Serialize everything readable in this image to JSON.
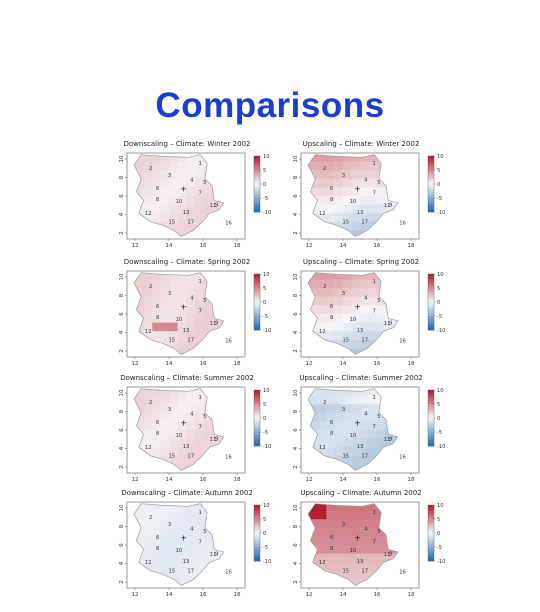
{
  "slide": {
    "title": "Comparisons"
  },
  "colors": {
    "title": "#1a3fcf",
    "positive": "#c0262e",
    "negative": "#2166ac",
    "neutral": "#f7f7f7",
    "border": "#b8b8b8"
  },
  "chart_data": {
    "type": "heatmap",
    "grid": {
      "rows": 4,
      "columns": 2
    },
    "x_ticks": [
      "12",
      "14",
      "16",
      "18"
    ],
    "y_ticks": [
      "2",
      "4",
      "6",
      "8",
      "10"
    ],
    "colorbar": {
      "min": -10,
      "max": 10,
      "ticks": [
        "10",
        "5",
        "0",
        "-5",
        "-10"
      ]
    },
    "station_labels": [
      "1",
      "2",
      "3",
      "4",
      "5",
      "6",
      "7",
      "8",
      "9",
      "10",
      "11",
      "12",
      "13",
      "15",
      "16",
      "17"
    ],
    "panels": [
      {
        "title": "Downscaling – Climate: Winter 2002",
        "method": "Downscaling",
        "season": "Winter",
        "year": 2002,
        "mean_anomaly": 1.0,
        "pattern": "weak-positive"
      },
      {
        "title": "Upscaling – Climate: Winter 2002",
        "method": "Upscaling",
        "season": "Winter",
        "year": 2002,
        "mean_anomaly": 1.5,
        "pattern": "positive-north-negative-south"
      },
      {
        "title": "Downscaling – Climate: Spring 2002",
        "method": "Downscaling",
        "season": "Spring",
        "year": 2002,
        "mean_anomaly": 1.5,
        "pattern": "positive-with-hotspot"
      },
      {
        "title": "Upscaling – Climate: Spring 2002",
        "method": "Upscaling",
        "season": "Spring",
        "year": 2002,
        "mean_anomaly": 2.0,
        "pattern": "positive-north-negative-south"
      },
      {
        "title": "Downscaling – Climate: Summer 2002",
        "method": "Downscaling",
        "season": "Summer",
        "year": 2002,
        "mean_anomaly": 0.8,
        "pattern": "weak-positive"
      },
      {
        "title": "Upscaling – Climate: Summer 2002",
        "method": "Upscaling",
        "season": "Summer",
        "year": 2002,
        "mean_anomaly": -2.0,
        "pattern": "negative"
      },
      {
        "title": "Downscaling – Climate: Autumn 2002",
        "method": "Downscaling",
        "season": "Autumn",
        "year": 2002,
        "mean_anomaly": -0.5,
        "pattern": "weak-negative"
      },
      {
        "title": "Upscaling – Climate: Autumn 2002",
        "method": "Upscaling",
        "season": "Autumn",
        "year": 2002,
        "mean_anomaly": 3.0,
        "pattern": "strong-positive"
      }
    ]
  }
}
